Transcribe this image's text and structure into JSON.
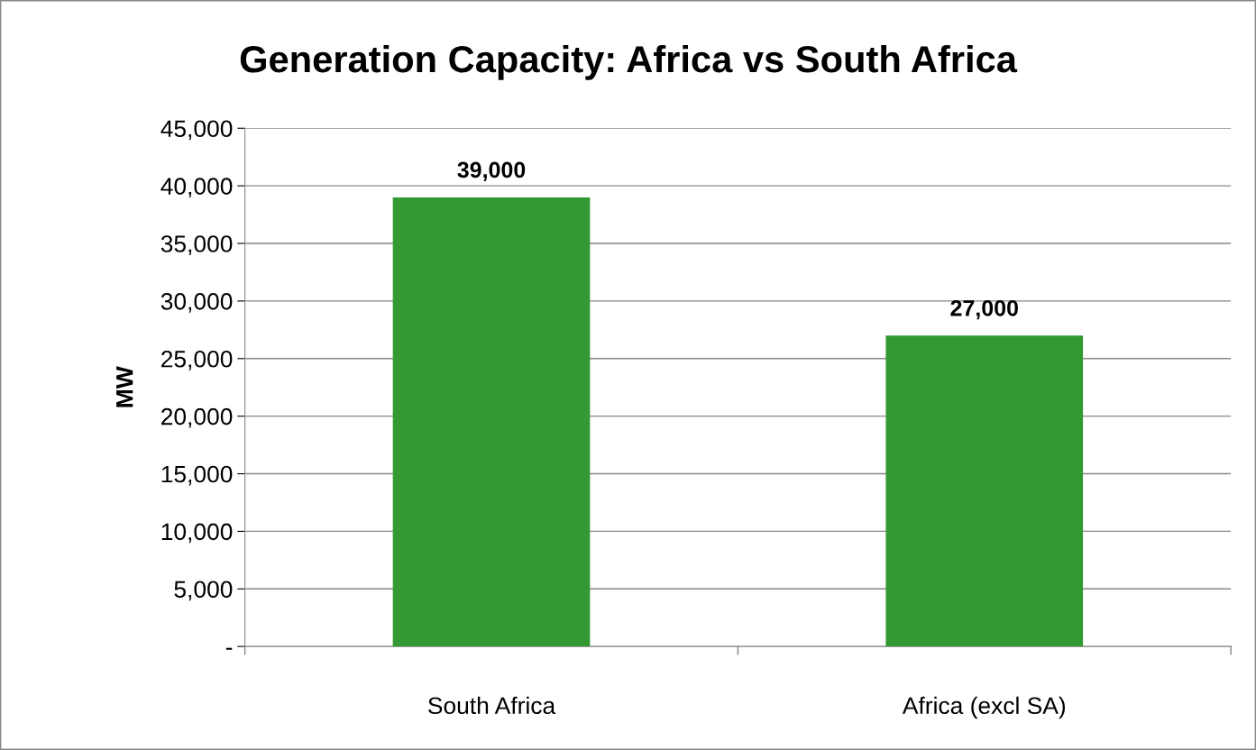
{
  "chart_data": {
    "type": "bar",
    "title": "Generation Capacity: Africa vs South Africa",
    "ylabel": "MW",
    "categories": [
      "South Africa",
      "Africa (excl SA)"
    ],
    "values": [
      39000,
      27000
    ],
    "color": "#339933",
    "ylim": [
      0,
      45000
    ],
    "yticks": [
      {
        "value": 0,
        "label": "-"
      },
      {
        "value": 5000,
        "label": "5,000"
      },
      {
        "value": 10000,
        "label": "10,000"
      },
      {
        "value": 15000,
        "label": "15,000"
      },
      {
        "value": 20000,
        "label": "20,000"
      },
      {
        "value": 25000,
        "label": "25,000"
      },
      {
        "value": 30000,
        "label": "30,000"
      },
      {
        "value": 35000,
        "label": "35,000"
      },
      {
        "value": 40000,
        "label": "40,000"
      },
      {
        "value": 45000,
        "label": "45,000"
      }
    ],
    "value_labels": [
      "39,000",
      "27,000"
    ],
    "grid": "y",
    "legend": false
  }
}
